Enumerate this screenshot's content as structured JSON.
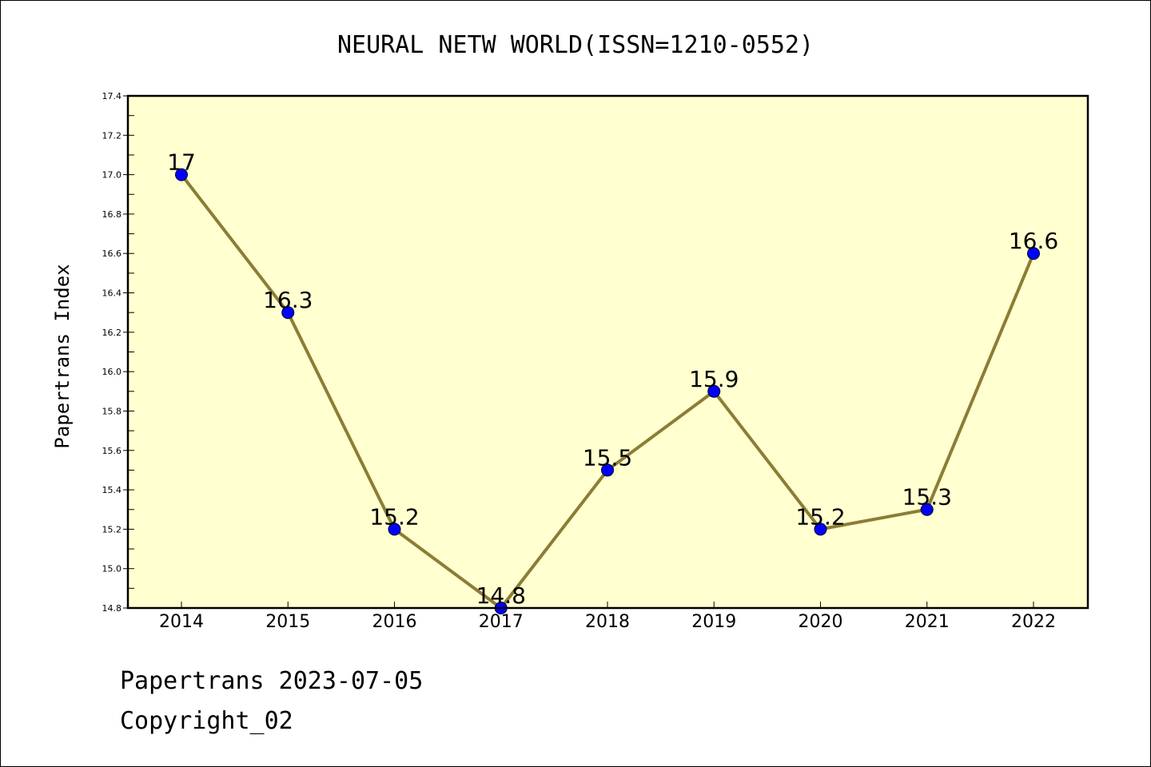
{
  "chart_data": {
    "type": "line",
    "title": "NEURAL NETW WORLD(ISSN=1210-0552)",
    "xlabel": "",
    "ylabel": "Papertrans Index",
    "categories": [
      "2014",
      "2015",
      "2016",
      "2017",
      "2018",
      "2019",
      "2020",
      "2021",
      "2022"
    ],
    "series": [
      {
        "values": [
          17,
          16.3,
          15.2,
          14.8,
          15.5,
          15.9,
          15.2,
          15.3,
          16.6
        ],
        "labels": [
          "17",
          "16.3",
          "15.2",
          "14.8",
          "15.5",
          "15.9",
          "15.2",
          "15.3",
          "16.6"
        ]
      }
    ],
    "ylim": [
      14.8,
      17.4
    ],
    "yticks": [
      "14.8",
      "15.0",
      "15.2",
      "15.4",
      "15.6",
      "15.8",
      "16.0",
      "16.2",
      "16.4",
      "16.6",
      "16.8",
      "17.0",
      "17.2",
      "17.4"
    ],
    "grid": false,
    "legend": "none",
    "colors": {
      "plot_background": "#ffffd0",
      "line": "#8b7d35",
      "marker": "#0000ff"
    }
  },
  "footer": {
    "line1": "Papertrans 2023-07-05",
    "line2": "Copyright_02"
  }
}
